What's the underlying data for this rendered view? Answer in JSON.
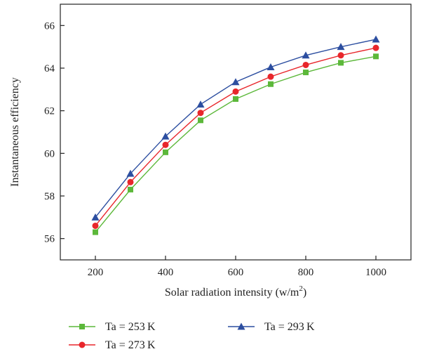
{
  "chart_data": {
    "type": "line",
    "xlabel": "Solar radiation intensity (w/m",
    "xlabel_sup": "2",
    "xlabel_close": ")",
    "ylabel": "Instantaneous efficiency",
    "x": [
      200,
      300,
      400,
      500,
      600,
      700,
      800,
      900,
      1000
    ],
    "xlim": [
      100,
      1100
    ],
    "ylim": [
      55,
      67
    ],
    "xticks": [
      200,
      400,
      600,
      800,
      1000
    ],
    "yticks": [
      56,
      58,
      60,
      62,
      64,
      66
    ],
    "grid": false,
    "legend_position": "bottom",
    "series": [
      {
        "name": "Ta = 253 K",
        "color": "#5cb83a",
        "marker": "square",
        "values": [
          56.3,
          58.3,
          60.05,
          61.55,
          62.55,
          63.25,
          63.8,
          64.25,
          64.55
        ]
      },
      {
        "name": "Ta = 273 K",
        "color": "#e8262b",
        "marker": "circle",
        "values": [
          56.6,
          58.65,
          60.4,
          61.9,
          62.9,
          63.6,
          64.15,
          64.6,
          64.95
        ]
      },
      {
        "name": "Ta = 293 K",
        "color": "#2c4ea0",
        "marker": "triangle",
        "values": [
          57.0,
          59.05,
          60.8,
          62.3,
          63.35,
          64.05,
          64.6,
          65.0,
          65.35
        ]
      }
    ]
  }
}
